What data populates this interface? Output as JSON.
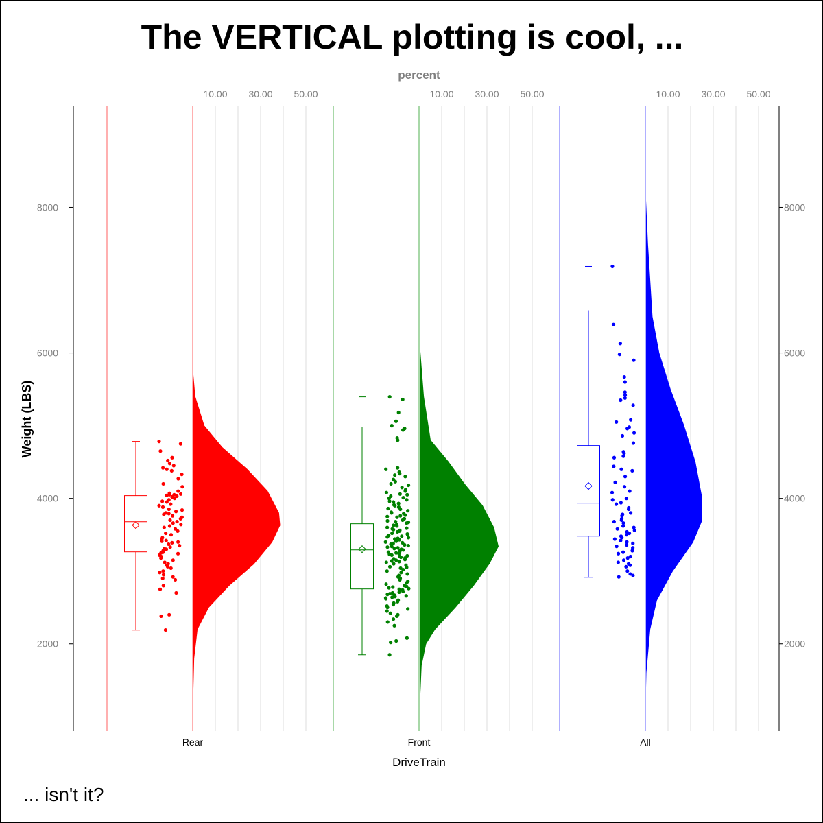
{
  "chart_data": {
    "type": "raincloud",
    "orientation": "vertical",
    "title": "The VERTICAL plotting is cool, ...",
    "footnote": "... isn't it?",
    "xlabel": "DriveTrain",
    "ylabel": "Weight (LBS)",
    "x2label": "percent",
    "ylim": [
      800,
      9400
    ],
    "yticks": [
      2000,
      4000,
      6000,
      8000
    ],
    "percent_ticks": [
      "10.00",
      "30.00",
      "50.00"
    ],
    "percent_grid": [
      10,
      20,
      30,
      40,
      50
    ],
    "percent_range": [
      0,
      60
    ],
    "grid": true,
    "groups": [
      {
        "label": "Rear",
        "color": "#ff0000",
        "box": {
          "min": 2189,
          "q1": 3264,
          "median": 3679,
          "q3": 4038,
          "max": 4783,
          "mean": 3632
        },
        "max_marker": null,
        "density": [
          [
            1200,
            0
          ],
          [
            1800,
            0.5
          ],
          [
            2200,
            2
          ],
          [
            2500,
            7
          ],
          [
            2800,
            16
          ],
          [
            3100,
            27
          ],
          [
            3400,
            35
          ],
          [
            3630,
            38.5
          ],
          [
            3800,
            38
          ],
          [
            4100,
            33
          ],
          [
            4400,
            24
          ],
          [
            4700,
            13
          ],
          [
            5000,
            5
          ],
          [
            5400,
            1
          ],
          [
            5750,
            0
          ]
        ],
        "points": [
          4783,
          4750,
          4650,
          4560,
          4520,
          4480,
          4450,
          4420,
          4400,
          4380,
          4330,
          4270,
          4200,
          4160,
          4100,
          4070,
          4060,
          4050,
          4050,
          4040,
          4030,
          4020,
          4000,
          3980,
          3960,
          3950,
          3920,
          3900,
          3880,
          3850,
          3840,
          3820,
          3800,
          3790,
          3780,
          3760,
          3740,
          3720,
          3700,
          3680,
          3660,
          3640,
          3620,
          3600,
          3580,
          3550,
          3520,
          3500,
          3460,
          3440,
          3420,
          3410,
          3400,
          3390,
          3370,
          3350,
          3330,
          3310,
          3300,
          3280,
          3260,
          3250,
          3240,
          3220,
          3200,
          3180,
          3150,
          3120,
          3100,
          3080,
          3060,
          3040,
          3000,
          2980,
          2950,
          2920,
          2900,
          2880,
          2800,
          2750,
          2700,
          2400,
          2380,
          2190
        ]
      },
      {
        "label": "Front",
        "color": "#008000",
        "box": {
          "min": 1849,
          "q1": 2755,
          "median": 3292,
          "q3": 3651,
          "max": 4981,
          "mean": 3302
        },
        "max_marker": 5396,
        "density": [
          [
            1000,
            0
          ],
          [
            1700,
            1
          ],
          [
            2000,
            3
          ],
          [
            2200,
            7
          ],
          [
            2500,
            16
          ],
          [
            2800,
            24
          ],
          [
            3100,
            31
          ],
          [
            3340,
            35
          ],
          [
            3600,
            33
          ],
          [
            3900,
            28
          ],
          [
            4200,
            20
          ],
          [
            4500,
            13
          ],
          [
            4800,
            5
          ],
          [
            5100,
            3.5
          ],
          [
            5400,
            2
          ],
          [
            5800,
            1
          ],
          [
            6200,
            0
          ]
        ],
        "points": [
          5396,
          5360,
          5180,
          5060,
          5000,
          4960,
          4940,
          4830,
          4800,
          4420,
          4400,
          4360,
          4340,
          4320,
          4300,
          4260,
          4230,
          4200,
          4180,
          4150,
          4120,
          4100,
          4080,
          4060,
          4050,
          4030,
          4010,
          4000,
          3980,
          3960,
          3950,
          3930,
          3910,
          3900,
          3880,
          3860,
          3850,
          3830,
          3810,
          3800,
          3790,
          3770,
          3760,
          3750,
          3740,
          3720,
          3700,
          3690,
          3680,
          3670,
          3660,
          3640,
          3630,
          3620,
          3600,
          3590,
          3580,
          3570,
          3560,
          3550,
          3540,
          3520,
          3510,
          3500,
          3490,
          3480,
          3470,
          3460,
          3450,
          3440,
          3430,
          3420,
          3410,
          3400,
          3390,
          3380,
          3370,
          3360,
          3350,
          3340,
          3330,
          3320,
          3310,
          3300,
          3290,
          3280,
          3270,
          3260,
          3250,
          3240,
          3230,
          3220,
          3210,
          3200,
          3190,
          3180,
          3170,
          3160,
          3150,
          3140,
          3130,
          3120,
          3100,
          3080,
          3060,
          3050,
          3040,
          3020,
          3000,
          2980,
          2960,
          2940,
          2920,
          2900,
          2880,
          2860,
          2840,
          2820,
          2800,
          2790,
          2780,
          2770,
          2760,
          2750,
          2740,
          2730,
          2720,
          2710,
          2700,
          2690,
          2680,
          2670,
          2660,
          2650,
          2640,
          2630,
          2620,
          2600,
          2580,
          2560,
          2540,
          2520,
          2500,
          2480,
          2450,
          2420,
          2400,
          2380,
          2340,
          2300,
          2250,
          2080,
          2040,
          2020,
          1849
        ]
      },
      {
        "label": "All",
        "color": "#0000ff",
        "box": {
          "min": 2915,
          "q1": 3481,
          "median": 3934,
          "q3": 4726,
          "max": 6585,
          "mean": 4170
        },
        "max_marker": 7189,
        "density": [
          [
            1200,
            0
          ],
          [
            1600,
            0.3
          ],
          [
            2200,
            2
          ],
          [
            2600,
            5
          ],
          [
            3000,
            12
          ],
          [
            3400,
            21
          ],
          [
            3700,
            25
          ],
          [
            4000,
            25
          ],
          [
            4500,
            22
          ],
          [
            5000,
            17
          ],
          [
            5500,
            11
          ],
          [
            6000,
            6
          ],
          [
            6500,
            3
          ],
          [
            7500,
            1
          ],
          [
            8200,
            0
          ]
        ],
        "points": [
          7189,
          6390,
          6130,
          5980,
          5900,
          5670,
          5600,
          5460,
          5420,
          5380,
          5350,
          5280,
          5080,
          5050,
          4980,
          4960,
          4900,
          4860,
          4760,
          4640,
          4620,
          4580,
          4560,
          4440,
          4400,
          4380,
          4300,
          4220,
          4160,
          4100,
          4080,
          4000,
          3980,
          3940,
          3920,
          3870,
          3850,
          3800,
          3780,
          3760,
          3720,
          3700,
          3680,
          3660,
          3620,
          3600,
          3580,
          3560,
          3540,
          3520,
          3500,
          3480,
          3460,
          3440,
          3420,
          3400,
          3380,
          3360,
          3340,
          3320,
          3300,
          3280,
          3260,
          3240,
          3200,
          3180,
          3150,
          3120,
          3100,
          3080,
          3060,
          3000,
          2960,
          2940,
          2920
        ]
      }
    ]
  }
}
